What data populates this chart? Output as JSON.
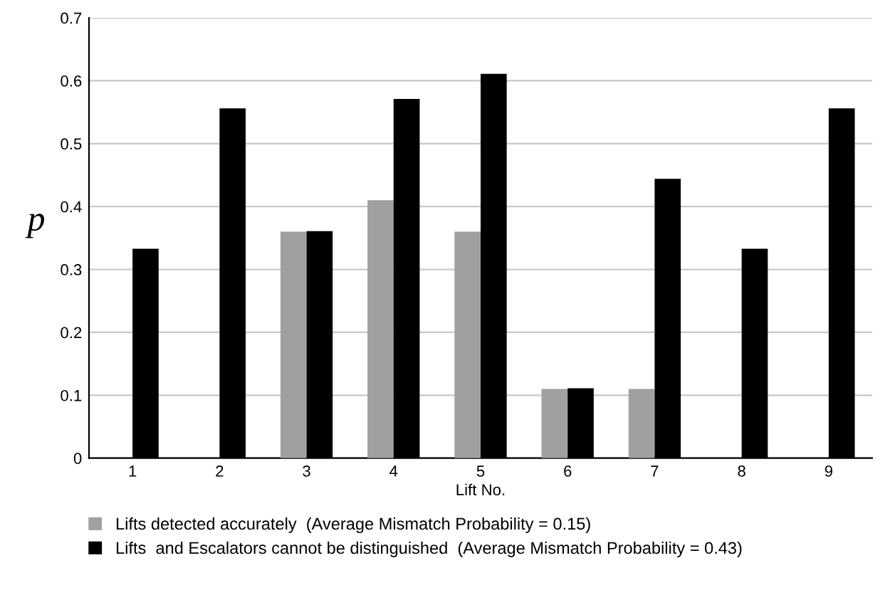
{
  "chart_data": {
    "type": "bar",
    "xlabel": "Lift No.",
    "ylabel": "p",
    "categories": [
      "1",
      "2",
      "3",
      "4",
      "5",
      "6",
      "7",
      "8",
      "9"
    ],
    "series": [
      {
        "name": "Lifts detected accurately  (Average Mismatch Probability = 0.15)",
        "color": "#a0a0a0",
        "values": [
          0,
          0,
          0.36,
          0.41,
          0.36,
          0.11,
          0.11,
          0,
          0
        ]
      },
      {
        "name": "Lifts  and Escalators cannot be distinguished  (Average Mismatch Probability = 0.43)",
        "color": "#000000",
        "values": [
          0.333,
          0.556,
          0.361,
          0.571,
          0.611,
          0.111,
          0.444,
          0.333,
          0.556
        ]
      }
    ],
    "ylim": [
      0,
      0.7
    ],
    "yticks": [
      {
        "value": 0,
        "label": "0"
      },
      {
        "value": 0.1,
        "label": "0.1"
      },
      {
        "value": 0.2,
        "label": "0.2"
      },
      {
        "value": 0.3,
        "label": "0.3"
      },
      {
        "value": 0.4,
        "label": "0.4"
      },
      {
        "value": 0.5,
        "label": "0.5"
      },
      {
        "value": 0.6,
        "label": "0.6"
      },
      {
        "value": 0.7,
        "label": "0.7"
      }
    ],
    "grid": "y",
    "legend": "bottom"
  }
}
